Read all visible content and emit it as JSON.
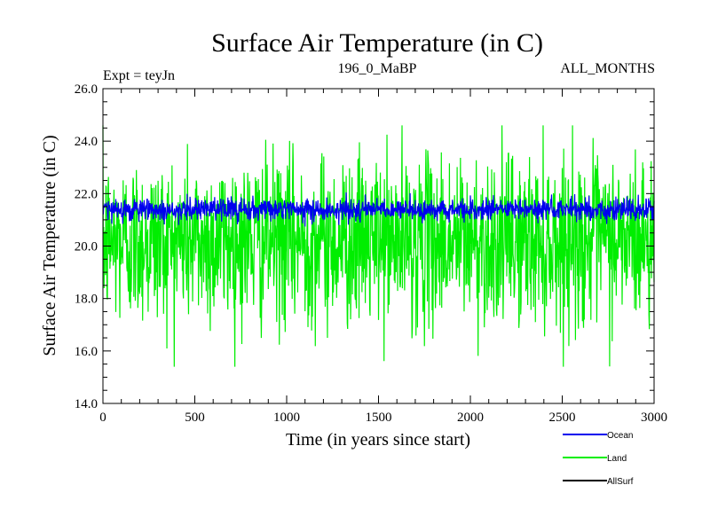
{
  "chart_data": {
    "type": "line",
    "title": "Surface Air Temperature (in C)",
    "subtitle_left": "Expt = teyJn",
    "subtitle_center": "196_0_MaBP",
    "subtitle_right": "ALL_MONTHS",
    "xlabel": "Time (in years since start)",
    "ylabel": "Surface Air Temperature (in C)",
    "xlim": [
      0,
      3000
    ],
    "ylim": [
      14.0,
      26.0
    ],
    "x_ticks": [
      0,
      500,
      1000,
      1500,
      2000,
      2500,
      3000
    ],
    "x_tick_labels": [
      "0",
      "500",
      "1000",
      "1500",
      "2000",
      "2500",
      "3000"
    ],
    "y_ticks": [
      14,
      16,
      18,
      20,
      22,
      24,
      26
    ],
    "y_tick_labels": [
      "14.0",
      "16.0",
      "18.0",
      "20.0",
      "22.0",
      "24.0",
      "26.0"
    ],
    "grid": false,
    "legend_position": "bottom-right",
    "series": [
      {
        "name": "Land",
        "color": "#00ee00",
        "x_range": [
          0,
          3000
        ],
        "mean": 20.2,
        "typical_range": [
          16.4,
          24.0
        ],
        "extremes": [
          15.4,
          24.6
        ]
      },
      {
        "name": "Ocean",
        "color": "#0000ee",
        "x_range": [
          0,
          3000
        ],
        "mean": 21.4,
        "typical_range": [
          20.9,
          21.9
        ],
        "extremes": [
          20.7,
          22.2
        ]
      },
      {
        "name": "AllSurf",
        "color": "#000000",
        "x_range": [
          0,
          3000
        ],
        "mean": null
      }
    ],
    "legend": [
      {
        "label": "Ocean",
        "color": "#0000ee"
      },
      {
        "label": "Land",
        "color": "#00ee00"
      },
      {
        "label": "AllSurf",
        "color": "#000000"
      }
    ]
  }
}
